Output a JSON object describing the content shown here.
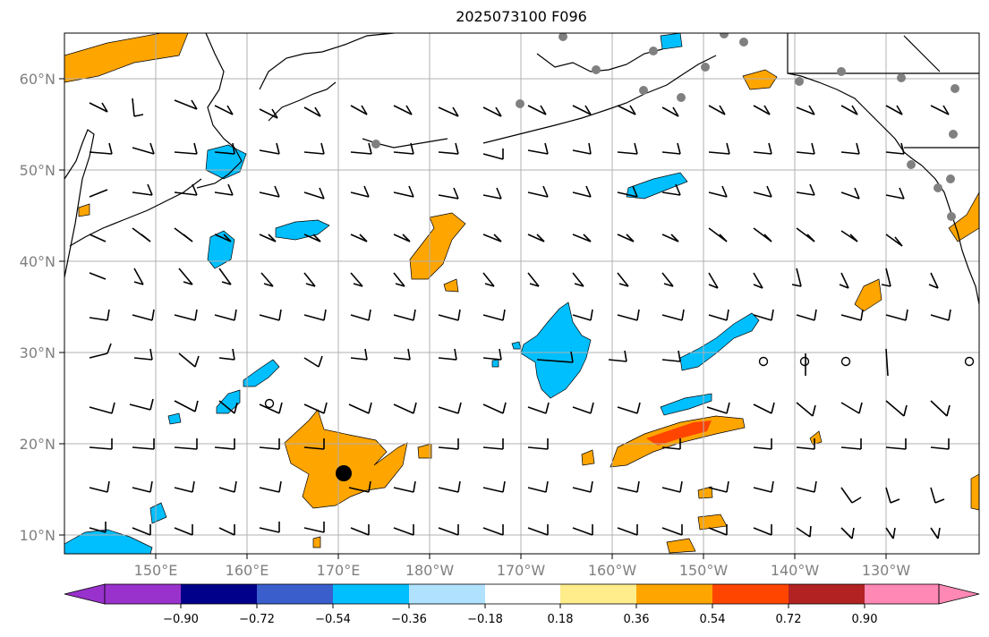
{
  "title": "2025073100 F096",
  "lat_labels": [
    "60°N",
    "50°N",
    "40°N",
    "30°N",
    "20°N",
    "10°N"
  ],
  "lon_labels": [
    "150°E",
    "160°E",
    "170°E",
    "180°W",
    "170°W",
    "160°W",
    "150°W",
    "140°W",
    "130°W"
  ],
  "colorbar": {
    "tick_labels": [
      "−0.90",
      "−0.72",
      "−0.54",
      "−0.36",
      "−0.18",
      "0.18",
      "0.36",
      "0.54",
      "0.72",
      "0.90"
    ],
    "colors": [
      "#9932cc",
      "#00008b",
      "#3a5fcd",
      "#00bfff",
      "#b0e2ff",
      "#ffffff",
      "#ffec8b",
      "#ffa500",
      "#ff4500",
      "#b22222",
      "#ff89b4"
    ]
  },
  "map_colors": {
    "negative": "#00bfff",
    "positive": "#ffa500",
    "strong_positive": "#ff4500",
    "stations": "#808080"
  },
  "storm_marker": {
    "lat": 16.7,
    "lon": 170.5
  }
}
